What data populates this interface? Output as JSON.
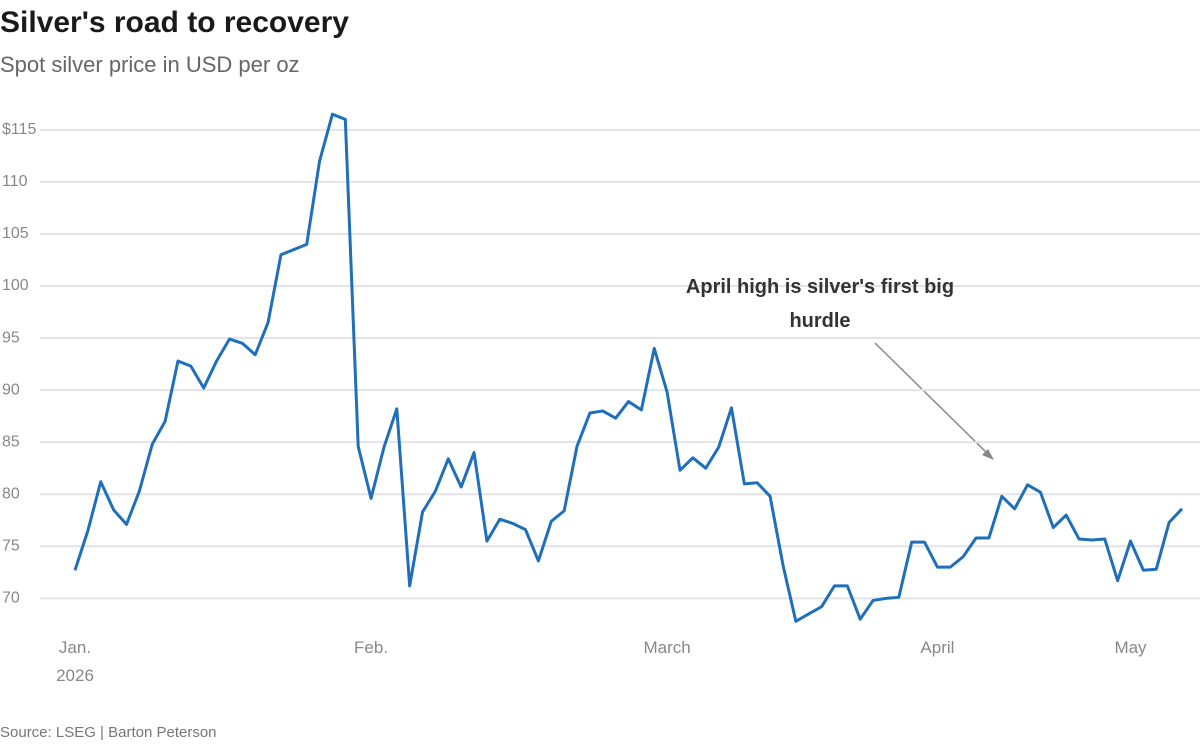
{
  "chart_data": {
    "type": "line",
    "title": "Silver's road to recovery",
    "subtitle": "Spot silver price in USD per oz",
    "source": "Source: LSEG | Barton Peterson",
    "annotation": "April high is silver's first big hurdle",
    "categories": [
      "Jan. 2026",
      null,
      null,
      null,
      null,
      null,
      null,
      null,
      null,
      null,
      null,
      null,
      null,
      null,
      null,
      null,
      null,
      null,
      null,
      null,
      null,
      null,
      null,
      "Feb.",
      null,
      null,
      null,
      null,
      null,
      null,
      null,
      null,
      null,
      null,
      null,
      null,
      null,
      null,
      null,
      null,
      null,
      null,
      null,
      null,
      null,
      null,
      "March",
      null,
      null,
      null,
      null,
      null,
      null,
      null,
      null,
      null,
      null,
      null,
      null,
      null,
      null,
      null,
      null,
      null,
      null,
      null,
      null,
      "April",
      null,
      null,
      null,
      null,
      null,
      null,
      null,
      null,
      null,
      null,
      null,
      null,
      null,
      null,
      "May",
      null,
      null,
      null,
      null
    ],
    "series": [
      {
        "name": "Spot silver",
        "color": "#1f6fba",
        "values": [
          72.7,
          76.5,
          81.2,
          78.5,
          77.1,
          80.3,
          84.8,
          87.0,
          92.8,
          92.3,
          90.2,
          92.8,
          94.9,
          94.5,
          93.4,
          96.5,
          103.0,
          103.5,
          104.0,
          112.0,
          116.5,
          116.0,
          84.6,
          79.6,
          84.5,
          88.2,
          71.2,
          78.3,
          80.3,
          83.4,
          80.7,
          84.0,
          75.5,
          77.6,
          77.2,
          76.6,
          73.6,
          77.4,
          78.4,
          84.6,
          87.8,
          88.0,
          87.3,
          88.9,
          88.1,
          94.0,
          89.8,
          82.3,
          83.5,
          82.5,
          84.5,
          88.3,
          81.0,
          81.1,
          79.8,
          73.2,
          67.8,
          68.5,
          69.2,
          71.2,
          71.2,
          68.0,
          69.8,
          70.0,
          70.1,
          75.4,
          75.4,
          73.0,
          73.0,
          74.0,
          75.8,
          75.8,
          79.8,
          78.6,
          80.9,
          80.2,
          76.8,
          78.0,
          75.7,
          75.6,
          75.7,
          71.7,
          75.5,
          72.7,
          72.8,
          77.3,
          78.6
        ]
      }
    ],
    "ylim": [
      66,
      117
    ],
    "yticks": [
      70,
      75,
      80,
      85,
      90,
      95,
      100,
      105,
      110,
      {
        "value": 115,
        "label": "$115"
      }
    ],
    "grid": true
  }
}
